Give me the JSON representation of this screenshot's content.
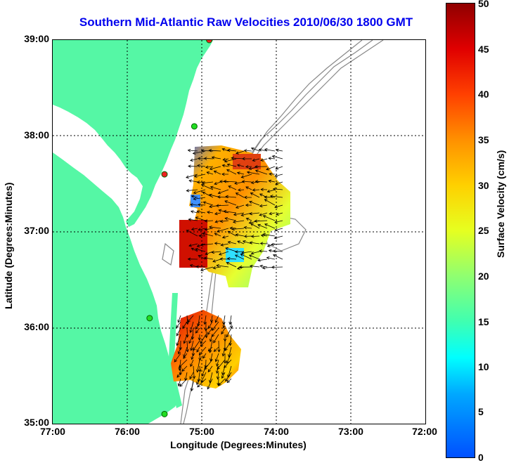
{
  "title": "Southern Mid-Atlantic Raw Velocities 2010/06/30 1800 GMT",
  "axes": {
    "xlabel": "Longitude (Degrees:Minutes)",
    "ylabel": "Latitude (Degrees:Minutes)",
    "xticks": [
      "77:00",
      "76:00",
      "75:00",
      "74:00",
      "73:00",
      "72:00"
    ],
    "yticks": [
      "39:00",
      "38:00",
      "37:00",
      "36:00",
      "35:00"
    ],
    "grid": "dotted"
  },
  "colorbar": {
    "label": "Surface Velocity (cm/s)",
    "ticks": [
      "50",
      "45",
      "40",
      "35",
      "30",
      "25",
      "20",
      "15",
      "10",
      "5",
      "0"
    ],
    "range": [
      0,
      50
    ]
  },
  "colors": {
    "land": "#55f7a5",
    "title": "#0000ee",
    "station_active": "#22dd22",
    "station_inactive": "#ee2222"
  },
  "stations": [
    {
      "lon": -74.9,
      "lat": 39.0,
      "status": "inactive"
    },
    {
      "lon": -75.1,
      "lat": 38.1,
      "status": "active"
    },
    {
      "lon": -75.5,
      "lat": 37.6,
      "status": "inactive"
    },
    {
      "lon": -75.7,
      "lat": 36.1,
      "status": "active"
    },
    {
      "lon": -75.5,
      "lat": 35.1,
      "status": "active"
    }
  ]
}
